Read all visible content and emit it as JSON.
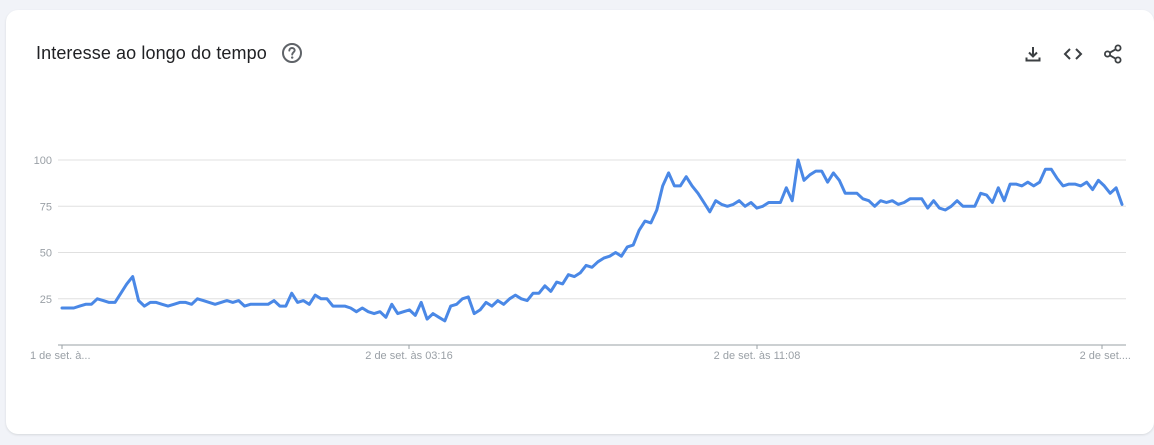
{
  "header": {
    "title": "Interesse ao longo do tempo",
    "help_icon": "help-circle-icon"
  },
  "actions": [
    {
      "name": "download-button",
      "icon": "download-icon"
    },
    {
      "name": "embed-button",
      "icon": "code-icon"
    },
    {
      "name": "share-button",
      "icon": "share-icon"
    }
  ],
  "colors": {
    "line": "#4a88e6",
    "grid": "#e0e0e0",
    "axis": "#9aa0a6",
    "text": "#202124"
  },
  "chart_data": {
    "type": "line",
    "title": "Interesse ao longo do tempo",
    "xlabel": "",
    "ylabel": "",
    "ylim": [
      0,
      100
    ],
    "yticks": [
      25,
      50,
      75,
      100
    ],
    "xtick_labels": [
      "1 de set. à...",
      "2 de set. às 03:16",
      "2 de set. às 11:08",
      "2 de set...."
    ],
    "grid": true,
    "series": [
      {
        "values": [
          20,
          20,
          20,
          21,
          22,
          22,
          25,
          24,
          23,
          23,
          28,
          33,
          37,
          24,
          21,
          23,
          23,
          22,
          21,
          22,
          23,
          23,
          22,
          25,
          24,
          23,
          22,
          23,
          24,
          23,
          24,
          21,
          22,
          22,
          22,
          22,
          24,
          21,
          21,
          28,
          23,
          24,
          22,
          27,
          25,
          25,
          21,
          21,
          21,
          20,
          18,
          20,
          18,
          17,
          18,
          15,
          22,
          17,
          18,
          19,
          16,
          23,
          14,
          17,
          15,
          13,
          21,
          22,
          25,
          26,
          17,
          19,
          23,
          21,
          24,
          22,
          25,
          27,
          25,
          24,
          28,
          28,
          32,
          29,
          34,
          33,
          38,
          37,
          39,
          43,
          42,
          45,
          47,
          48,
          50,
          48,
          53,
          54,
          62,
          67,
          66,
          73,
          86,
          93,
          86,
          86,
          91,
          86,
          82,
          77,
          72,
          78,
          76,
          75,
          76,
          78,
          75,
          77,
          74,
          75,
          77,
          77,
          77,
          85,
          78,
          100,
          89,
          92,
          94,
          94,
          88,
          93,
          89,
          82,
          82,
          82,
          79,
          78,
          75,
          78,
          77,
          78,
          76,
          77,
          79,
          79,
          79,
          74,
          78,
          74,
          73,
          75,
          78,
          75,
          75,
          75,
          82,
          81,
          77,
          85,
          78,
          87,
          87,
          86,
          88,
          86,
          88,
          95,
          95,
          90,
          86,
          87,
          87,
          86,
          88,
          84,
          89,
          86,
          82,
          85,
          76
        ]
      }
    ]
  }
}
